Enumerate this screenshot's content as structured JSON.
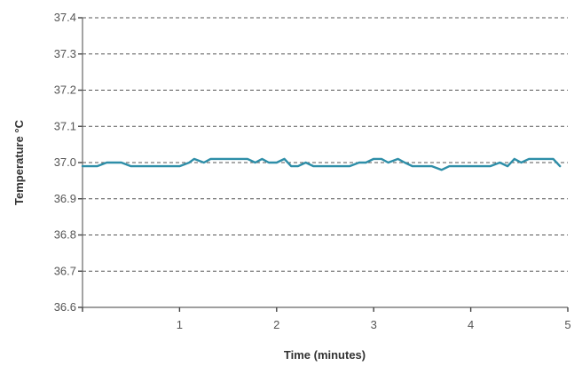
{
  "chart_data": {
    "type": "line",
    "title": "",
    "xlabel": "Time (minutes)",
    "ylabel": "Temperature °C",
    "xlim": [
      0,
      5
    ],
    "ylim": [
      36.6,
      37.4
    ],
    "x_ticks": [
      0,
      1,
      2,
      3,
      4,
      5
    ],
    "x_tick_labels": [
      "",
      "1",
      "2",
      "3",
      "4",
      "5"
    ],
    "y_ticks": [
      36.6,
      36.7,
      36.8,
      36.9,
      37.0,
      37.1,
      37.2,
      37.3,
      37.4
    ],
    "y_tick_labels": [
      "36.6",
      "36.7",
      "36.8",
      "36.9",
      "37.0",
      "37.1",
      "37.2",
      "37.3",
      "37.4"
    ],
    "grid": "horizontal dashed",
    "legend": "none",
    "line_color": "#2e8ea8",
    "series": [
      {
        "x": [
          0,
          0.15,
          0.25,
          0.4,
          0.5,
          0.6,
          0.7,
          0.8,
          0.9,
          1.0,
          1.1,
          1.15,
          1.25,
          1.32,
          1.4,
          1.5,
          1.6,
          1.7,
          1.78,
          1.85,
          1.92,
          2.0,
          2.08,
          2.15,
          2.22,
          2.3,
          2.38,
          2.45,
          2.55,
          2.65,
          2.75,
          2.85,
          2.92,
          3.0,
          3.08,
          3.15,
          3.25,
          3.32,
          3.4,
          3.5,
          3.6,
          3.7,
          3.78,
          3.85,
          3.92,
          4.0,
          4.1,
          4.2,
          4.3,
          4.38,
          4.45,
          4.52,
          4.6,
          4.68,
          4.76,
          4.85,
          4.92
        ],
        "values": [
          36.99,
          36.99,
          37.0,
          37.0,
          36.99,
          36.99,
          36.99,
          36.99,
          36.99,
          36.99,
          37.0,
          37.01,
          37.0,
          37.01,
          37.01,
          37.01,
          37.01,
          37.01,
          37.0,
          37.01,
          37.0,
          37.0,
          37.01,
          36.99,
          36.99,
          37.0,
          36.99,
          36.99,
          36.99,
          36.99,
          36.99,
          37.0,
          37.0,
          37.01,
          37.01,
          37.0,
          37.01,
          37.0,
          36.99,
          36.99,
          36.99,
          36.98,
          36.99,
          36.99,
          36.99,
          36.99,
          36.99,
          36.99,
          37.0,
          36.99,
          37.01,
          37.0,
          37.01,
          37.01,
          37.01,
          37.01,
          36.99
        ]
      }
    ]
  }
}
